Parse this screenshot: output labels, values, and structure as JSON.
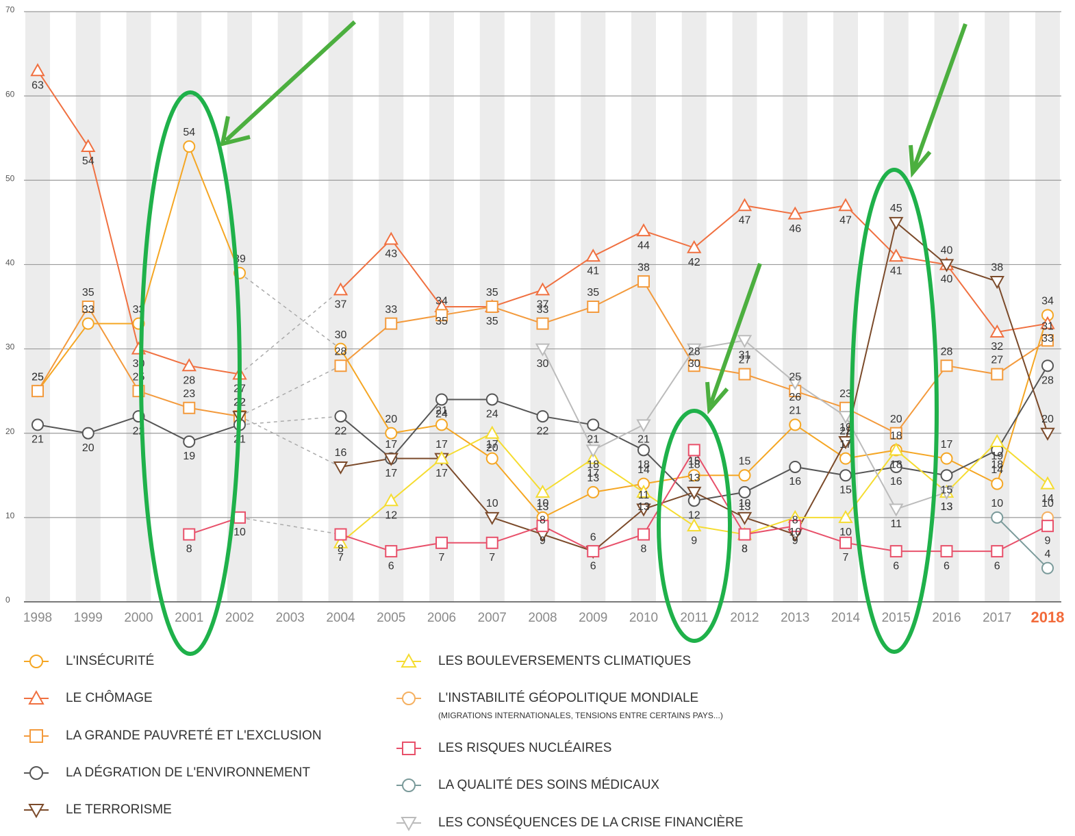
{
  "chart_data": {
    "type": "line",
    "categories": [
      "1998",
      "1999",
      "2000",
      "2001",
      "2002",
      "2003",
      "2004",
      "2005",
      "2006",
      "2007",
      "2008",
      "2009",
      "2010",
      "2011",
      "2012",
      "2013",
      "2014",
      "2015",
      "2016",
      "2017",
      "2018"
    ],
    "ylim": [
      0,
      70
    ],
    "yticks": [
      0,
      10,
      20,
      30,
      40,
      50,
      60,
      70
    ],
    "grid": true,
    "legend_note": "(MIGRATIONS INTERNATIONALES, TENSIONS ENTRE CERTAINS PAYS...)",
    "series": [
      {
        "name": "L'INSÉCURITÉ",
        "color": "#f5a623",
        "marker": "circle",
        "values": [
          25,
          33,
          33,
          54,
          39,
          null,
          30,
          20,
          21,
          17,
          10,
          13,
          14,
          15,
          15,
          21,
          17,
          18,
          17,
          14,
          34
        ]
      },
      {
        "name": "LE CHÔMAGE",
        "color": "#f07040",
        "marker": "triangle-up",
        "values": [
          63,
          54,
          30,
          28,
          27,
          null,
          37,
          43,
          35,
          35,
          37,
          41,
          44,
          42,
          47,
          46,
          47,
          41,
          40,
          32,
          33
        ]
      },
      {
        "name": "LA GRANDE PAUVRETÉ ET L'EXCLUSION",
        "color": "#f39a3c",
        "marker": "square",
        "values": [
          25,
          35,
          25,
          23,
          22,
          null,
          28,
          33,
          34,
          35,
          33,
          35,
          38,
          28,
          27,
          25,
          23,
          20,
          28,
          27,
          31
        ]
      },
      {
        "name": "LA DÉGRATION DE L'ENVIRONNEMENT",
        "color": "#555555",
        "marker": "circle",
        "values": [
          21,
          20,
          22,
          19,
          21,
          null,
          22,
          17,
          24,
          24,
          22,
          21,
          18,
          12,
          13,
          16,
          15,
          16,
          15,
          18,
          28
        ]
      },
      {
        "name": "LE TERRORISME",
        "color": "#7b4a2a",
        "marker": "triangle-down",
        "values": [
          null,
          null,
          null,
          null,
          22,
          null,
          16,
          17,
          17,
          10,
          8,
          6,
          11,
          13,
          10,
          8,
          19,
          45,
          40,
          38,
          20
        ]
      },
      {
        "name": "LES BOULEVERSEMENTS CLIMATIQUES",
        "color": "#f5dc30",
        "marker": "triangle-up",
        "values": [
          null,
          null,
          null,
          null,
          null,
          null,
          7,
          12,
          17,
          20,
          13,
          17,
          13,
          9,
          8,
          10,
          10,
          18,
          13,
          19,
          14
        ]
      },
      {
        "name": "L'INSTABILITÉ GÉOPOLITIQUE MONDIALE",
        "color": "#f5b060",
        "marker": "circle",
        "values": [
          null,
          null,
          null,
          null,
          null,
          null,
          null,
          null,
          null,
          null,
          null,
          null,
          null,
          null,
          null,
          null,
          null,
          null,
          null,
          null,
          10
        ]
      },
      {
        "name": "LES RISQUES NUCLÉAIRES",
        "color": "#e8506a",
        "marker": "square",
        "values": [
          null,
          null,
          null,
          8,
          10,
          null,
          8,
          6,
          7,
          7,
          9,
          6,
          8,
          18,
          8,
          9,
          7,
          6,
          6,
          6,
          9
        ]
      },
      {
        "name": "LA QUALITÉ DES SOINS MÉDICAUX",
        "color": "#7a9a9a",
        "marker": "circle",
        "values": [
          null,
          null,
          null,
          null,
          null,
          null,
          null,
          null,
          null,
          null,
          null,
          null,
          null,
          null,
          null,
          null,
          null,
          null,
          null,
          10,
          4
        ]
      },
      {
        "name": "LES CONSÉQUENCES DE LA CRISE FINANCIÈRE",
        "color": "#bbbbbb",
        "marker": "triangle-down",
        "values": [
          null,
          null,
          null,
          null,
          null,
          null,
          null,
          null,
          null,
          null,
          30,
          18,
          21,
          30,
          31,
          26,
          22,
          11,
          13,
          null,
          null
        ]
      }
    ]
  }
}
